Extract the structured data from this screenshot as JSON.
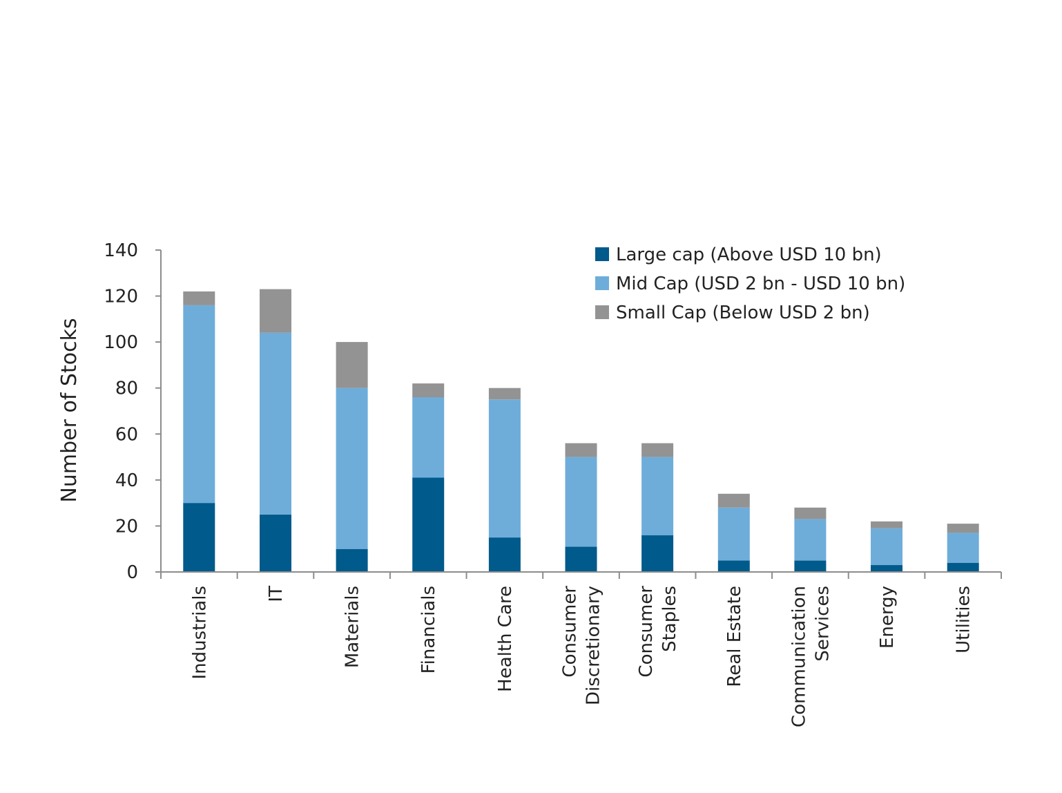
{
  "colors": {
    "large_cap": "#005a8b",
    "mid_cap": "#6eadda",
    "small_cap": "#939393",
    "axis": "#8c8c8c",
    "text": "#222222"
  },
  "chart_data": {
    "type": "bar",
    "stacked": true,
    "title": "",
    "xlabel": "",
    "ylabel": "Number of Stocks",
    "ylim": [
      0,
      140
    ],
    "yticks": [
      0,
      20,
      40,
      60,
      80,
      100,
      120,
      140
    ],
    "ytick_labels": [
      "0",
      "20",
      "40",
      "60",
      "80",
      "100",
      "120",
      "140"
    ],
    "grid": false,
    "legend_position": "top-right",
    "categories": [
      [
        "Industrials"
      ],
      [
        "IT"
      ],
      [
        "Materials"
      ],
      [
        "Financials"
      ],
      [
        "Health Care"
      ],
      [
        "Consumer",
        "Discretionary"
      ],
      [
        "Consumer",
        "Staples"
      ],
      [
        "Real Estate"
      ],
      [
        "Communication",
        "Services"
      ],
      [
        "Energy"
      ],
      [
        "Utilities"
      ]
    ],
    "series": [
      {
        "name": "Large cap (Above USD 10 bn)",
        "color_key": "large_cap",
        "values": [
          30,
          25,
          10,
          41,
          15,
          11,
          16,
          5,
          5,
          3,
          4
        ]
      },
      {
        "name": "Mid Cap (USD 2 bn - USD 10 bn)",
        "color_key": "mid_cap",
        "values": [
          86,
          79,
          70,
          35,
          60,
          39,
          34,
          23,
          18,
          16,
          13
        ]
      },
      {
        "name": "Small Cap (Below USD 2 bn)",
        "color_key": "small_cap",
        "values": [
          6,
          19,
          20,
          6,
          5,
          6,
          6,
          6,
          5,
          3,
          4
        ]
      }
    ]
  }
}
